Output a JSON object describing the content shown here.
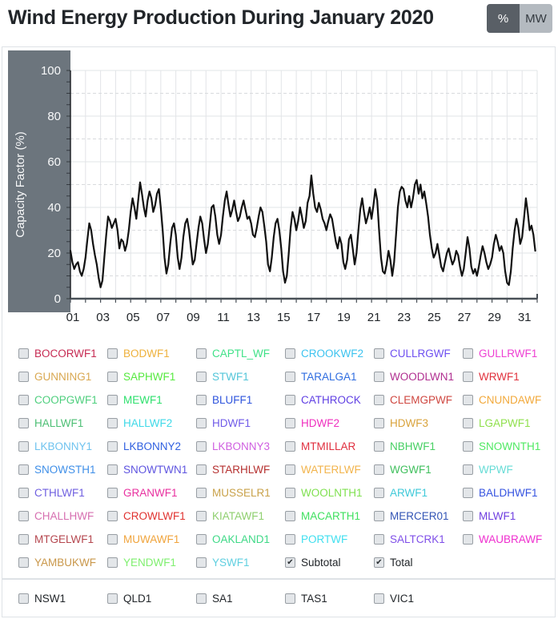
{
  "header": {
    "title": "Wind Energy Production During January 2020",
    "unit_toggle": {
      "percent_label": "%",
      "mw_label": "MW",
      "active": "%"
    }
  },
  "colors": {
    "axis_panel_bg": "#6c757d",
    "axis_text": "#f8f9fa",
    "line": "#111111",
    "grid_major": "#e2e4e7",
    "grid_minor": "#d8dadd",
    "axis_line": "#495057",
    "x_label": "#212529",
    "border": "#dee2e6",
    "button_active_bg": "#595f66",
    "button_inactive_bg": "#b4bac0"
  },
  "farms": [
    {
      "label": "BOCORWF1",
      "color": "#c62a52",
      "checked": false
    },
    {
      "label": "BODWF1",
      "color": "#eeb13c",
      "checked": false
    },
    {
      "label": "CAPTL_WF",
      "color": "#3fe187",
      "checked": false
    },
    {
      "label": "CROOKWF2",
      "color": "#3cc3ef",
      "checked": false
    },
    {
      "label": "CULLRGWF",
      "color": "#6e4ff0",
      "checked": false
    },
    {
      "label": "GULLRWF1",
      "color": "#ee3fd3",
      "checked": false
    },
    {
      "label": "GUNNING1",
      "color": "#d9a851",
      "checked": false
    },
    {
      "label": "SAPHWF1",
      "color": "#56e93f",
      "checked": false
    },
    {
      "label": "STWF1",
      "color": "#52c5d9",
      "checked": false
    },
    {
      "label": "TARALGA1",
      "color": "#2f6de0",
      "checked": false
    },
    {
      "label": "WOODLWN1",
      "color": "#b02f90",
      "checked": false
    },
    {
      "label": "WRWF1",
      "color": "#e0313d",
      "checked": false
    },
    {
      "label": "COOPGWF1",
      "color": "#4fcf7e",
      "checked": false
    },
    {
      "label": "MEWF1",
      "color": "#2ee06d",
      "checked": false
    },
    {
      "label": "BLUFF1",
      "color": "#2f55dd",
      "checked": false
    },
    {
      "label": "CATHROCK",
      "color": "#5f3fe3",
      "checked": false
    },
    {
      "label": "CLEMGPWF",
      "color": "#cf4740",
      "checked": false
    },
    {
      "label": "CNUNDAWF",
      "color": "#f2a93b",
      "checked": false
    },
    {
      "label": "HALLWF1",
      "color": "#4cbf74",
      "checked": false
    },
    {
      "label": "HALLWF2",
      "color": "#3fd9e8",
      "checked": false
    },
    {
      "label": "HDWF1",
      "color": "#6f5ae8",
      "checked": false
    },
    {
      "label": "HDWF2",
      "color": "#ef2fbf",
      "checked": false
    },
    {
      "label": "HDWF3",
      "color": "#d9a33c",
      "checked": false
    },
    {
      "label": "LGAPWF1",
      "color": "#8fe04c",
      "checked": false
    },
    {
      "label": "LKBONNY1",
      "color": "#6fc3ef",
      "checked": false
    },
    {
      "label": "LKBONNY2",
      "color": "#2f5fe0",
      "checked": false
    },
    {
      "label": "LKBONNY3",
      "color": "#cf5fe0",
      "checked": false
    },
    {
      "label": "MTMILLAR",
      "color": "#e02f3f",
      "checked": false
    },
    {
      "label": "NBHWF1",
      "color": "#46cf62",
      "checked": false
    },
    {
      "label": "SNOWNTH1",
      "color": "#4fe962",
      "checked": false
    },
    {
      "label": "SNOWSTH1",
      "color": "#3f8fe8",
      "checked": false
    },
    {
      "label": "SNOWTWN1",
      "color": "#5f55e0",
      "checked": false
    },
    {
      "label": "STARHLWF",
      "color": "#b5302f",
      "checked": false
    },
    {
      "label": "WATERLWF",
      "color": "#f2b44c",
      "checked": false
    },
    {
      "label": "WGWF1",
      "color": "#3fbf5c",
      "checked": false
    },
    {
      "label": "WPWF",
      "color": "#66dcd6",
      "checked": false
    },
    {
      "label": "CTHLWF1",
      "color": "#6f5fe0",
      "checked": false
    },
    {
      "label": "GRANWF1",
      "color": "#e8309f",
      "checked": false
    },
    {
      "label": "MUSSELR1",
      "color": "#c9a24a",
      "checked": false
    },
    {
      "label": "WOOLNTH1",
      "color": "#7fe04f",
      "checked": false
    },
    {
      "label": "ARWF1",
      "color": "#3fc9d9",
      "checked": false
    },
    {
      "label": "BALDHWF1",
      "color": "#3553e0",
      "checked": false
    },
    {
      "label": "CHALLHWF",
      "color": "#d66fb0",
      "checked": false
    },
    {
      "label": "CROWLWF1",
      "color": "#e0322f",
      "checked": false
    },
    {
      "label": "KIATAWF1",
      "color": "#8fcf6f",
      "checked": false
    },
    {
      "label": "MACARTH1",
      "color": "#3fe05f",
      "checked": false
    },
    {
      "label": "MERCER01",
      "color": "#3355b5",
      "checked": false
    },
    {
      "label": "MLWF1",
      "color": "#6f3fe0",
      "checked": false
    },
    {
      "label": "MTGELWF1",
      "color": "#b5474f",
      "checked": false
    },
    {
      "label": "MUWAWF1",
      "color": "#f0a43c",
      "checked": false
    },
    {
      "label": "OAKLAND1",
      "color": "#3fd987",
      "checked": false
    },
    {
      "label": "PORTWF",
      "color": "#3fdfef",
      "checked": false
    },
    {
      "label": "SALTCRK1",
      "color": "#7f4fe8",
      "checked": false
    },
    {
      "label": "WAUBRAWF",
      "color": "#ef2fcf",
      "checked": false
    },
    {
      "label": "YAMBUKWF",
      "color": "#c9974a",
      "checked": false
    },
    {
      "label": "YENDWF1",
      "color": "#7fef6f",
      "checked": false
    },
    {
      "label": "YSWF1",
      "color": "#5fcfe0",
      "checked": false
    },
    {
      "label": "Subtotal",
      "color": "#212529",
      "checked": true
    },
    {
      "label": "Total",
      "color": "#212529",
      "checked": true
    }
  ],
  "regions": [
    {
      "label": "NSW1",
      "color": "#212529",
      "checked": false
    },
    {
      "label": "QLD1",
      "color": "#212529",
      "checked": false
    },
    {
      "label": "SA1",
      "color": "#212529",
      "checked": false
    },
    {
      "label": "TAS1",
      "color": "#212529",
      "checked": false
    },
    {
      "label": "VIC1",
      "color": "#212529",
      "checked": false
    }
  ],
  "chart_data": {
    "type": "line",
    "title": "",
    "xlabel": "",
    "ylabel": "Capacity Factor (%)",
    "ylim": [
      0,
      100
    ],
    "y_ticks": [
      0,
      20,
      40,
      60,
      80,
      100
    ],
    "x_tick_labels": [
      "01",
      "03",
      "05",
      "07",
      "09",
      "11",
      "13",
      "15",
      "17",
      "19",
      "21",
      "23",
      "25",
      "27",
      "29",
      "31"
    ],
    "days": 31,
    "points_per_day": 8,
    "grid": true,
    "legend": "none",
    "series": [
      {
        "name": "Total",
        "color": "#111111",
        "values": [
          21,
          16,
          13,
          15,
          16,
          12,
          10,
          13,
          18,
          26,
          33,
          30,
          24,
          19,
          15,
          9,
          5,
          8,
          18,
          28,
          36,
          34,
          31,
          33,
          35,
          30,
          22,
          26,
          25,
          21,
          24,
          30,
          38,
          44,
          40,
          35,
          43,
          51,
          46,
          40,
          36,
          43,
          47,
          44,
          38,
          41,
          46,
          48,
          40,
          30,
          18,
          11,
          15,
          24,
          31,
          33,
          28,
          18,
          13,
          18,
          27,
          33,
          35,
          30,
          22,
          15,
          17,
          24,
          31,
          36,
          33,
          26,
          20,
          24,
          32,
          40,
          41,
          36,
          28,
          24,
          28,
          36,
          43,
          47,
          41,
          36,
          39,
          43,
          38,
          34,
          36,
          40,
          43,
          39,
          35,
          36,
          33,
          28,
          27,
          31,
          36,
          40,
          38,
          32,
          25,
          15,
          12,
          18,
          27,
          33,
          35,
          30,
          22,
          12,
          7,
          10,
          20,
          31,
          38,
          35,
          30,
          34,
          40,
          36,
          31,
          34,
          42,
          45,
          54,
          46,
          40,
          38,
          42,
          39,
          35,
          33,
          30,
          34,
          37,
          35,
          30,
          25,
          22,
          27,
          24,
          16,
          13,
          17,
          26,
          28,
          22,
          15,
          20,
          30,
          39,
          44,
          38,
          33,
          36,
          40,
          35,
          41,
          48,
          43,
          30,
          18,
          12,
          11,
          15,
          21,
          17,
          10,
          16,
          28,
          40,
          47,
          49,
          48,
          43,
          40,
          45,
          40,
          44,
          50,
          52,
          46,
          50,
          44,
          47,
          42,
          36,
          28,
          22,
          18,
          20,
          24,
          19,
          14,
          12,
          16,
          20,
          22,
          18,
          15,
          17,
          21,
          19,
          14,
          10,
          13,
          20,
          27,
          22,
          14,
          11,
          13,
          10,
          14,
          19,
          23,
          20,
          16,
          13,
          15,
          18,
          24,
          28,
          25,
          21,
          23,
          20,
          12,
          7,
          6,
          12,
          22,
          30,
          35,
          31,
          24,
          27,
          35,
          44,
          38,
          30,
          32,
          28,
          21
        ]
      }
    ]
  }
}
